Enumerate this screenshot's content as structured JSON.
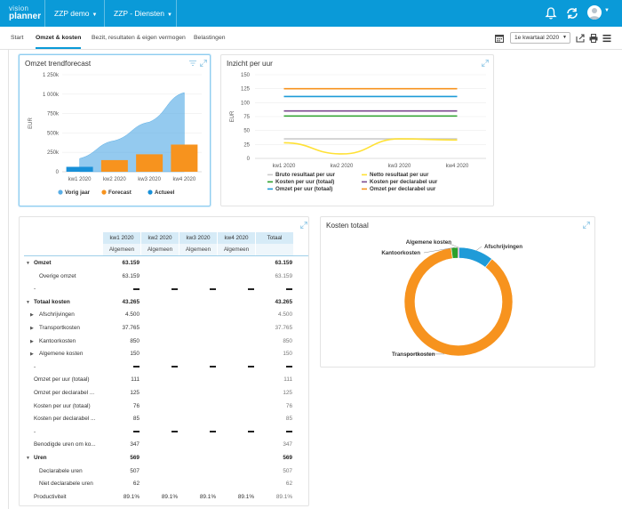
{
  "app": {
    "logo_top": "vision",
    "logo_bottom": "planner",
    "workspace": "ZZP demo",
    "scenario": "ZZP - Diensten"
  },
  "tabs": [
    {
      "label": "Start",
      "active": false
    },
    {
      "label": "Omzet & kosten",
      "active": true
    },
    {
      "label": "Bezit, resultaten & eigen vermogen",
      "active": false
    },
    {
      "label": "Belastingen",
      "active": false
    }
  ],
  "toolbar": {
    "period": "1e kwartaal 2020",
    "icons": [
      "calendar-icon",
      "export-icon",
      "print-icon",
      "menu-icon"
    ]
  },
  "colors": {
    "accent": "#0a9ad8",
    "vorig_jaar": "#5aaee6",
    "forecast": "#f7931e",
    "actueel": "#1890d8"
  },
  "trend": {
    "title": "Omzet trendforecast",
    "ylabel": "EUR",
    "legend": [
      "Vorig jaar",
      "Forecast",
      "Actueel"
    ]
  },
  "uur": {
    "title": "Inzicht per uur",
    "ylabel": "EUR",
    "legend": [
      "Bruto resultaat per uur",
      "Netto resultaat per uur",
      "Kosten per uur (totaal)",
      "Kosten per declarabel uur",
      "Omzet per uur (totaal)",
      "Omzet per declarabel uur"
    ]
  },
  "kosten": {
    "title": "Kosten totaal"
  },
  "chart_data": [
    {
      "type": "bar",
      "title": "Omzet trendforecast",
      "ylabel": "EUR",
      "categories": [
        "kw1 2020",
        "kw2 2020",
        "kw3 2020",
        "kw4 2020"
      ],
      "yticks": [
        "0",
        "250k",
        "500k",
        "750k",
        "1 000k",
        "1 250k"
      ],
      "ylim": [
        0,
        1250000
      ],
      "series": [
        {
          "name": "Vorig jaar",
          "type": "area",
          "values": [
            170000,
            400000,
            640000,
            1020000
          ]
        },
        {
          "name": "Forecast",
          "type": "bar",
          "values": [
            0,
            150000,
            225000,
            350000
          ]
        },
        {
          "name": "Actueel",
          "type": "bar",
          "values": [
            63159,
            0,
            0,
            0
          ]
        }
      ],
      "legend": "bottom"
    },
    {
      "type": "line",
      "title": "Inzicht per uur",
      "ylabel": "EUR",
      "categories": [
        "kw1 2020",
        "kw2 2020",
        "kw3 2020",
        "kw4 2020"
      ],
      "yticks": [
        "0",
        "25",
        "50",
        "75",
        "100",
        "125",
        "150"
      ],
      "ylim": [
        0,
        150
      ],
      "series": [
        {
          "name": "Bruto resultaat per uur",
          "color": "#cccccc",
          "values": [
            35,
            35,
            35,
            35
          ]
        },
        {
          "name": "Netto resultaat per uur",
          "color": "#ffe135",
          "values": [
            28,
            8,
            35,
            33
          ]
        },
        {
          "name": "Kosten per uur (totaal)",
          "color": "#2ca02c",
          "values": [
            76,
            76,
            76,
            76
          ]
        },
        {
          "name": "Kosten per declarabel uur",
          "color": "#7b4a8e",
          "values": [
            85,
            85,
            85,
            85
          ]
        },
        {
          "name": "Omzet per uur (totaal)",
          "color": "#1f9bd8",
          "values": [
            111,
            111,
            111,
            111
          ]
        },
        {
          "name": "Omzet per declarabel uur",
          "color": "#f7931e",
          "values": [
            125,
            125,
            125,
            125
          ]
        }
      ],
      "legend": "bottom"
    },
    {
      "type": "pie",
      "title": "Kosten totaal",
      "donut": true,
      "labels": [
        "Afschrijvingen",
        "Transportkosten",
        "Kantoorkosten",
        "Algemene kosten"
      ],
      "values": [
        4500,
        37765,
        850,
        150
      ],
      "colors": [
        "#1f9bd8",
        "#f7931e",
        "#2ca02c",
        "#7b4a8e"
      ]
    }
  ],
  "table": {
    "columns": [
      {
        "label": "kw1 2020",
        "sub": "Algemeen"
      },
      {
        "label": "kw2 2020",
        "sub": "Algemeen"
      },
      {
        "label": "kw3 2020",
        "sub": "Algemeen"
      },
      {
        "label": "kw4 2020",
        "sub": "Algemeen"
      },
      {
        "label": "Totaal",
        "sub": ""
      }
    ],
    "rows": [
      {
        "label": "Omzet",
        "level": 0,
        "bold": true,
        "caret": "down",
        "values": [
          "63.159",
          "",
          "",
          "",
          "63.159"
        ]
      },
      {
        "label": "Overige omzet",
        "level": 1,
        "values": [
          "63.159",
          "",
          "",
          "",
          "63.159"
        ]
      },
      {
        "label": "-",
        "level": 0,
        "dash": true,
        "values": [
          "",
          "",
          "",
          "",
          ""
        ]
      },
      {
        "label": "Totaal kosten",
        "level": 0,
        "bold": true,
        "caret": "down",
        "values": [
          "43.265",
          "",
          "",
          "",
          "43.265"
        ]
      },
      {
        "label": "Afschrijvingen",
        "level": 1,
        "caret": "right",
        "values": [
          "4.500",
          "",
          "",
          "",
          "4.500"
        ]
      },
      {
        "label": "Transportkosten",
        "level": 1,
        "caret": "right",
        "values": [
          "37.765",
          "",
          "",
          "",
          "37.765"
        ]
      },
      {
        "label": "Kantoorkosten",
        "level": 1,
        "caret": "right",
        "values": [
          "850",
          "",
          "",
          "",
          "850"
        ]
      },
      {
        "label": "Algemene kosten",
        "level": 1,
        "caret": "right",
        "values": [
          "150",
          "",
          "",
          "",
          "150"
        ]
      },
      {
        "label": "-",
        "level": 0,
        "dash": true,
        "values": [
          "",
          "",
          "",
          "",
          ""
        ]
      },
      {
        "label": "Omzet per uur (totaal)",
        "level": 0,
        "values": [
          "111",
          "",
          "",
          "",
          "111"
        ]
      },
      {
        "label": "Omzet per declarabel ...",
        "level": 0,
        "values": [
          "125",
          "",
          "",
          "",
          "125"
        ]
      },
      {
        "label": "Kosten per uur (totaal)",
        "level": 0,
        "values": [
          "76",
          "",
          "",
          "",
          "76"
        ]
      },
      {
        "label": "Kosten per declarabel ...",
        "level": 0,
        "values": [
          "85",
          "",
          "",
          "",
          "85"
        ]
      },
      {
        "label": "-",
        "level": 0,
        "dash": true,
        "values": [
          "",
          "",
          "",
          "",
          ""
        ]
      },
      {
        "label": "Benodigde uren om ko...",
        "level": 0,
        "values": [
          "347",
          "",
          "",
          "",
          "347"
        ]
      },
      {
        "label": "Uren",
        "level": 0,
        "bold": true,
        "caret": "down",
        "values": [
          "569",
          "",
          "",
          "",
          "569"
        ]
      },
      {
        "label": "Declarabele uren",
        "level": 1,
        "values": [
          "507",
          "",
          "",
          "",
          "507"
        ]
      },
      {
        "label": "Niet declarabele uren",
        "level": 1,
        "values": [
          "62",
          "",
          "",
          "",
          "62"
        ]
      },
      {
        "label": "Productiviteit",
        "level": 0,
        "values": [
          "89.1%",
          "89.1%",
          "89.1%",
          "89.1%",
          "89.1%"
        ]
      }
    ]
  }
}
